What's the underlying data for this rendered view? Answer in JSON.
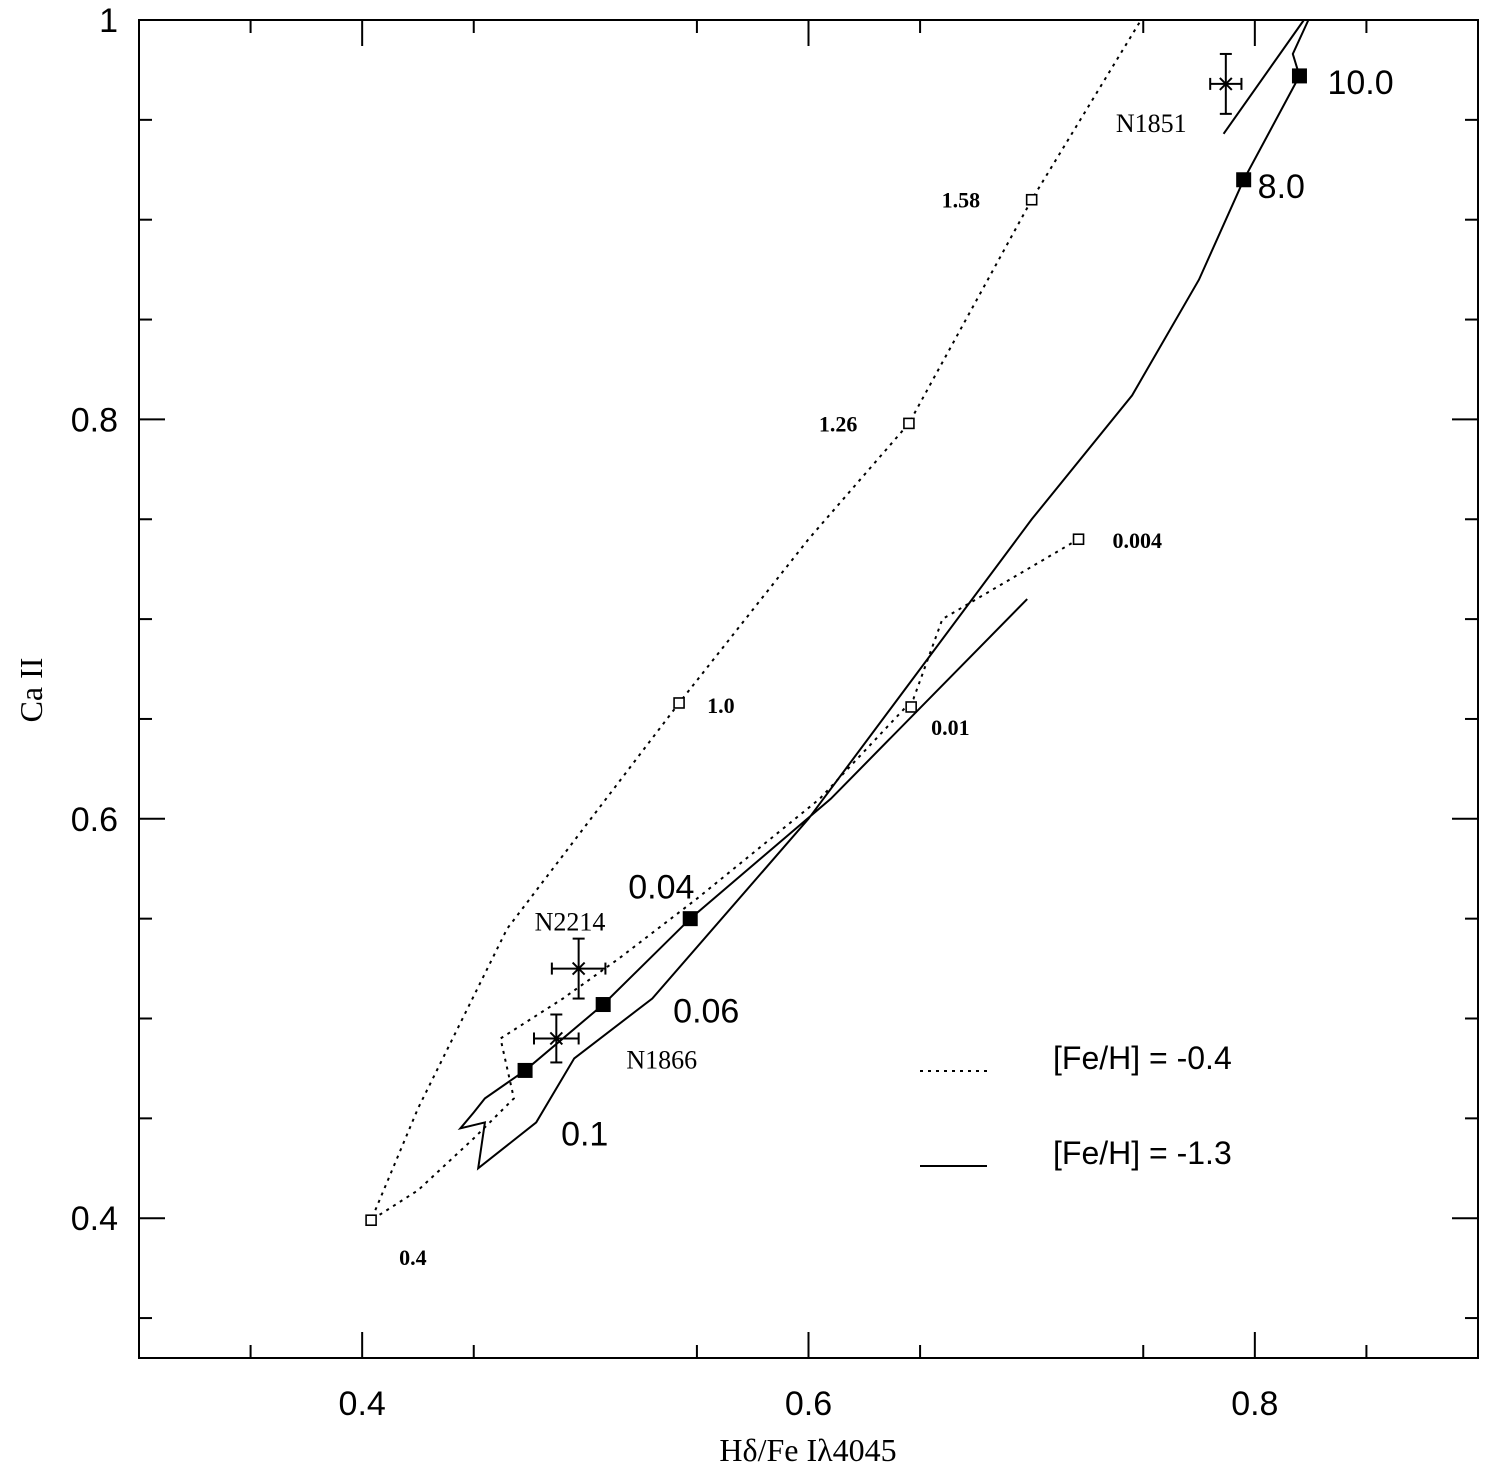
{
  "chart_data": {
    "type": "line",
    "xlabel": "Hδ/Fe Iλ4045",
    "ylabel": "Ca II",
    "xlim": [
      0.3,
      0.9
    ],
    "ylim": [
      0.33,
      1.0
    ],
    "x_ticks": [
      {
        "value": 0.4,
        "label": "0.4"
      },
      {
        "value": 0.6,
        "label": "0.6"
      },
      {
        "value": 0.8,
        "label": "0.8"
      }
    ],
    "y_ticks": [
      {
        "value": 0.4,
        "label": "0.4"
      },
      {
        "value": 0.6,
        "label": "0.6"
      },
      {
        "value": 0.8,
        "label": "0.8"
      },
      {
        "value": 1.0,
        "label": "1"
      }
    ],
    "grid": false,
    "legend_position": "bottom-right",
    "series": [
      {
        "name": "[Fe/H] = -0.4",
        "style": "dotted",
        "points": [
          [
            0.721,
            0.74
          ],
          [
            0.66,
            0.7
          ],
          [
            0.647,
            0.66
          ],
          [
            0.605,
            0.61
          ],
          [
            0.55,
            0.56
          ],
          [
            0.515,
            0.53
          ],
          [
            0.49,
            0.51
          ],
          [
            0.462,
            0.49
          ],
          [
            0.468,
            0.46
          ],
          [
            0.45,
            0.44
          ],
          [
            0.425,
            0.414
          ],
          [
            0.404,
            0.399
          ],
          [
            0.425,
            0.455
          ],
          [
            0.465,
            0.545
          ],
          [
            0.542,
            0.658
          ],
          [
            0.6,
            0.74
          ],
          [
            0.645,
            0.798
          ],
          [
            0.7,
            0.91
          ],
          [
            0.749,
            1.0
          ]
        ]
      },
      {
        "name": "[Fe/H] = -1.3",
        "style": "solid",
        "points": [
          [
            0.698,
            0.71
          ],
          [
            0.61,
            0.61
          ],
          [
            0.547,
            0.55
          ],
          [
            0.508,
            0.507
          ],
          [
            0.473,
            0.474
          ],
          [
            0.455,
            0.46
          ],
          [
            0.45,
            0.453
          ],
          [
            0.444,
            0.445
          ],
          [
            0.455,
            0.448
          ],
          [
            0.452,
            0.425
          ],
          [
            0.478,
            0.448
          ],
          [
            0.495,
            0.48
          ],
          [
            0.53,
            0.51
          ],
          [
            0.6,
            0.6
          ],
          [
            0.64,
            0.66
          ],
          [
            0.7,
            0.75
          ],
          [
            0.745,
            0.812
          ],
          [
            0.775,
            0.87
          ],
          [
            0.795,
            0.92
          ],
          [
            0.82,
            0.972
          ],
          [
            0.817,
            0.983
          ],
          [
            0.824,
            1.0
          ]
        ]
      },
      {
        "name": "",
        "style": "solid",
        "points": [
          [
            0.786,
            0.943
          ],
          [
            0.822,
            1.0
          ]
        ]
      }
    ],
    "model_markers_open": [
      {
        "x": 0.404,
        "y": 0.399,
        "label": "0.4"
      },
      {
        "x": 0.542,
        "y": 0.658,
        "label": "1.0"
      },
      {
        "x": 0.645,
        "y": 0.798,
        "label": "1.26"
      },
      {
        "x": 0.7,
        "y": 0.91,
        "label": "1.58"
      },
      {
        "x": 0.646,
        "y": 0.656,
        "label": "0.01"
      },
      {
        "x": 0.721,
        "y": 0.74,
        "label": "0.004"
      }
    ],
    "model_markers_filled": [
      {
        "x": 0.473,
        "y": 0.474,
        "label": "0.1"
      },
      {
        "x": 0.508,
        "y": 0.507,
        "label": "0.06"
      },
      {
        "x": 0.547,
        "y": 0.55,
        "label": "0.04"
      },
      {
        "x": 0.795,
        "y": 0.92,
        "label": "8.0"
      },
      {
        "x": 0.82,
        "y": 0.972,
        "label": "10.0"
      }
    ],
    "clusters": [
      {
        "name": "N1851",
        "x": 0.787,
        "y": 0.968,
        "xerr": 0.007,
        "yerr": 0.015
      },
      {
        "name": "N2214",
        "x": 0.497,
        "y": 0.525,
        "xerr": 0.012,
        "yerr": 0.015
      },
      {
        "name": "N1866",
        "x": 0.487,
        "y": 0.49,
        "xerr": 0.01,
        "yerr": 0.012
      }
    ],
    "legend": [
      {
        "label": "[Fe/H] = -0.4",
        "style": "dotted"
      },
      {
        "label": "[Fe/H] = -1.3",
        "style": "solid"
      }
    ]
  }
}
